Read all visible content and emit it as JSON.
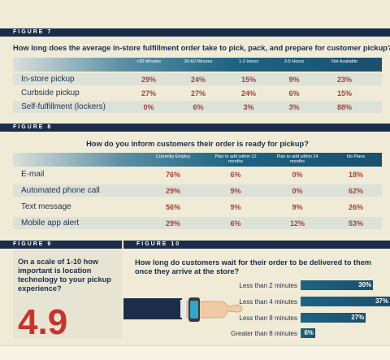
{
  "fig7": {
    "label": "FIGURE 7",
    "question": "How long does the average in-store fulfillment order take to pick, pack, and prepare for customer pickup?"
  },
  "fig8": {
    "label": "FIGURE 8",
    "question": "How do you inform customers their order is ready for pickup?"
  },
  "fig9": {
    "label": "FIGURE 9",
    "question": "On a scale of 1-10 how important is location technology to your pickup experience?",
    "value": "4.9"
  },
  "fig10": {
    "label": "FIGURE 10",
    "question": "How long do customers wait for their order to be delivered to them once they arrive at the store?"
  },
  "colors": {
    "navy": "#1b2d4a",
    "teal": "#1d6482",
    "red": "#c8342d",
    "value_red": "#a0433b",
    "background": "#f0ebd6"
  },
  "icons": [
    "smartwatch-icon",
    "arm-icon"
  ],
  "chart_data": [
    {
      "type": "table",
      "columns": [
        "<30 Minutes",
        "30-60 Minutes",
        "1-2 Hours",
        "3-5 Hours",
        "Not Available"
      ],
      "rows": [
        {
          "label": "In-store pickup",
          "values": [
            "29%",
            "24%",
            "15%",
            "9%",
            "23%"
          ]
        },
        {
          "label": "Curbside pickup",
          "values": [
            "27%",
            "27%",
            "24%",
            "6%",
            "15%"
          ]
        },
        {
          "label": "Self-fulfillment (lockers)",
          "values": [
            "0%",
            "6%",
            "3%",
            "3%",
            "88%"
          ]
        }
      ]
    },
    {
      "type": "table",
      "columns": [
        "Currently Employ",
        "Plan to add within 12 months",
        "Plan to add within 24 months",
        "No Plans"
      ],
      "rows": [
        {
          "label": "E-mail",
          "values": [
            "76%",
            "6%",
            "0%",
            "18%"
          ]
        },
        {
          "label": "Automated phone call",
          "values": [
            "29%",
            "9%",
            "0%",
            "62%"
          ]
        },
        {
          "label": "Text message",
          "values": [
            "56%",
            "9%",
            "9%",
            "26%"
          ]
        },
        {
          "label": "Mobile app alert",
          "values": [
            "29%",
            "6%",
            "12%",
            "53%"
          ]
        }
      ]
    },
    {
      "type": "bar",
      "orientation": "horizontal",
      "categories": [
        "Less than 2 minutes",
        "Less than 4 minutes",
        "Less than 8 minutes",
        "Greater than 8 minutes"
      ],
      "values": [
        30,
        37,
        27,
        6
      ],
      "value_labels": [
        "30%",
        "37%",
        "27%",
        "6%"
      ],
      "xlim": [
        0,
        37
      ]
    }
  ]
}
